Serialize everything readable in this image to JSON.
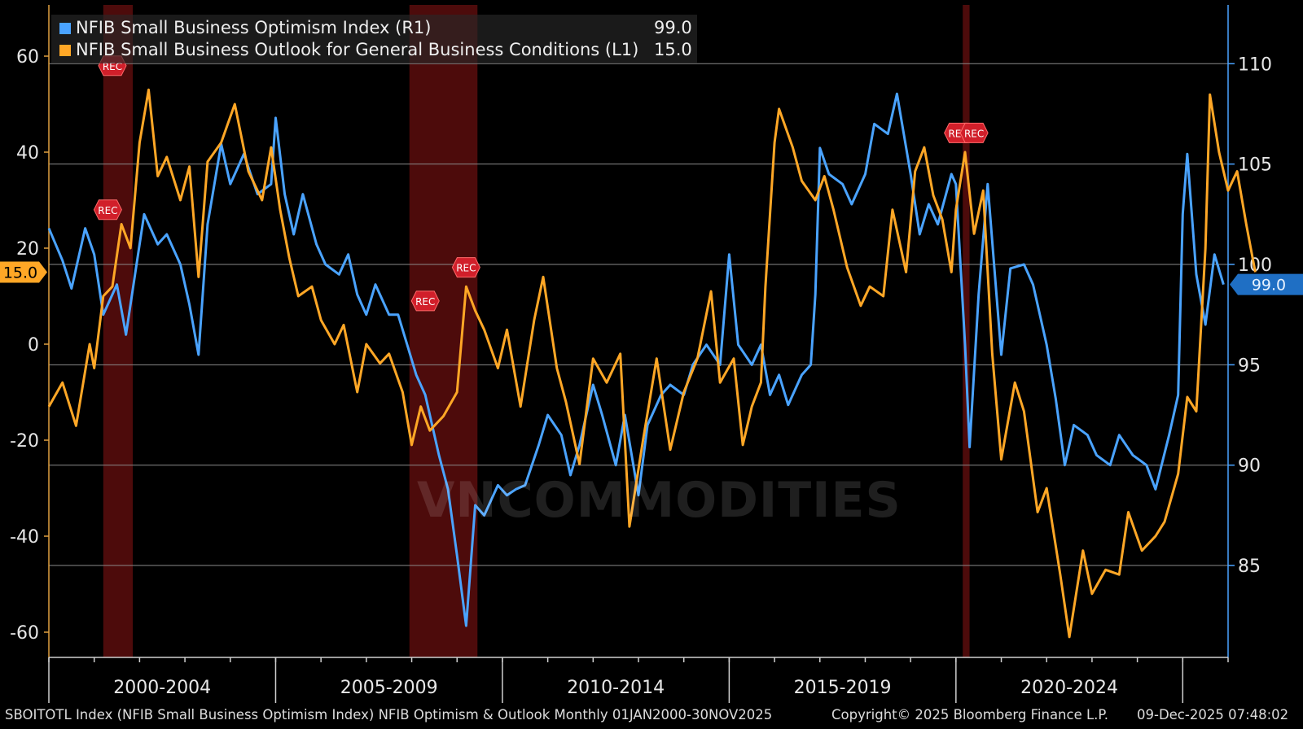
{
  "legend": {
    "series1": {
      "label": "NFIB Small Business Optimism Index  (R1)",
      "value": "99.0",
      "color": "#4aa3ff"
    },
    "series2": {
      "label": "NFIB Small Business Outlook for General Business Conditions (L1)",
      "value": "15.0",
      "color": "#ffa726"
    }
  },
  "footer": {
    "source": "SBOITOTL Index (NFIB Small Business Optimism Index) NFIB Optimism & Outlook Monthly 01JAN2000-30NOV2025",
    "copyright": "Copyright© 2025 Bloomberg Finance L.P.",
    "timestamp": "09-Dec-2025 07:48:02"
  },
  "watermark": "VNCOMMODITIES",
  "chart_data": {
    "type": "line",
    "title": "NFIB Optimism & Outlook Monthly",
    "x_range": [
      2000.0,
      2026.0
    ],
    "left_axis": {
      "range": [
        -66,
        70
      ],
      "ticks": [
        60,
        40,
        20,
        0,
        -20,
        -40,
        -60
      ],
      "last_value_label": "15.0"
    },
    "right_axis": {
      "range": [
        80,
        113
      ],
      "ticks": [
        110,
        105,
        100,
        95,
        90,
        85
      ],
      "last_value_label": "99.0"
    },
    "period_labels": [
      {
        "label": "2000-2004",
        "start": 2000,
        "end": 2005
      },
      {
        "label": "2005-2009",
        "start": 2005,
        "end": 2010
      },
      {
        "label": "2010-2014",
        "start": 2010,
        "end": 2015
      },
      {
        "label": "2015-2019",
        "start": 2015,
        "end": 2020
      },
      {
        "label": "2020-2024",
        "start": 2020,
        "end": 2025
      }
    ],
    "recessions": [
      [
        2001.2,
        2001.85
      ],
      [
        2007.95,
        2009.45
      ],
      [
        2020.15,
        2020.3
      ]
    ],
    "rec_markers": [
      {
        "label": "REC",
        "x": 2001.4,
        "y_left": 58
      },
      {
        "label": "REC",
        "x": 2001.3,
        "y_left": 28
      },
      {
        "label": "REC",
        "x": 2008.3,
        "y_left": 9
      },
      {
        "label": "REC",
        "x": 2009.2,
        "y_left": 16
      },
      {
        "label": "REC",
        "x": 2020.05,
        "y_left": 44
      },
      {
        "label": "REC",
        "x": 2020.4,
        "y_left": 44
      }
    ],
    "series": [
      {
        "name": "NFIB Small Business Optimism Index",
        "axis": "right",
        "color": "#4aa3ff",
        "points": [
          [
            2000.0,
            101.8
          ],
          [
            2000.3,
            100.2
          ],
          [
            2000.5,
            98.8
          ],
          [
            2000.8,
            101.8
          ],
          [
            2001.0,
            100.5
          ],
          [
            2001.2,
            97.5
          ],
          [
            2001.5,
            99.0
          ],
          [
            2001.7,
            96.5
          ],
          [
            2001.9,
            99.5
          ],
          [
            2002.1,
            102.5
          ],
          [
            2002.4,
            101.0
          ],
          [
            2002.6,
            101.5
          ],
          [
            2002.9,
            100.0
          ],
          [
            2003.1,
            98.0
          ],
          [
            2003.3,
            95.5
          ],
          [
            2003.5,
            102.0
          ],
          [
            2003.8,
            106.0
          ],
          [
            2004.0,
            104.0
          ],
          [
            2004.3,
            105.5
          ],
          [
            2004.6,
            103.5
          ],
          [
            2004.9,
            104.0
          ],
          [
            2005.0,
            107.3
          ],
          [
            2005.2,
            103.5
          ],
          [
            2005.4,
            101.5
          ],
          [
            2005.6,
            103.5
          ],
          [
            2005.9,
            101.0
          ],
          [
            2006.1,
            100.0
          ],
          [
            2006.4,
            99.5
          ],
          [
            2006.6,
            100.5
          ],
          [
            2006.8,
            98.5
          ],
          [
            2007.0,
            97.5
          ],
          [
            2007.2,
            99.0
          ],
          [
            2007.5,
            97.5
          ],
          [
            2007.7,
            97.5
          ],
          [
            2007.9,
            96.0
          ],
          [
            2008.1,
            94.5
          ],
          [
            2008.3,
            93.5
          ],
          [
            2008.6,
            90.5
          ],
          [
            2008.8,
            88.8
          ],
          [
            2009.0,
            85.5
          ],
          [
            2009.2,
            82.0
          ],
          [
            2009.4,
            88.0
          ],
          [
            2009.6,
            87.5
          ],
          [
            2009.9,
            89.0
          ],
          [
            2010.1,
            88.5
          ],
          [
            2010.3,
            88.8
          ],
          [
            2010.5,
            89.0
          ],
          [
            2010.8,
            91.0
          ],
          [
            2011.0,
            92.5
          ],
          [
            2011.3,
            91.5
          ],
          [
            2011.5,
            89.5
          ],
          [
            2011.7,
            91.0
          ],
          [
            2012.0,
            94.0
          ],
          [
            2012.2,
            92.5
          ],
          [
            2012.5,
            90.0
          ],
          [
            2012.7,
            92.5
          ],
          [
            2013.0,
            88.5
          ],
          [
            2013.2,
            92.0
          ],
          [
            2013.5,
            93.5
          ],
          [
            2013.7,
            94.0
          ],
          [
            2014.0,
            93.5
          ],
          [
            2014.2,
            95.0
          ],
          [
            2014.5,
            96.0
          ],
          [
            2014.8,
            95.0
          ],
          [
            2015.0,
            100.5
          ],
          [
            2015.2,
            96.0
          ],
          [
            2015.5,
            95.0
          ],
          [
            2015.7,
            96.0
          ],
          [
            2015.9,
            93.5
          ],
          [
            2016.1,
            94.5
          ],
          [
            2016.3,
            93.0
          ],
          [
            2016.6,
            94.5
          ],
          [
            2016.8,
            95.0
          ],
          [
            2016.9,
            98.5
          ],
          [
            2017.0,
            105.8
          ],
          [
            2017.2,
            104.5
          ],
          [
            2017.5,
            104.0
          ],
          [
            2017.7,
            103.0
          ],
          [
            2018.0,
            104.5
          ],
          [
            2018.2,
            107.0
          ],
          [
            2018.5,
            106.5
          ],
          [
            2018.7,
            108.5
          ],
          [
            2019.0,
            104.5
          ],
          [
            2019.2,
            101.5
          ],
          [
            2019.4,
            103.0
          ],
          [
            2019.6,
            102.0
          ],
          [
            2019.9,
            104.5
          ],
          [
            2020.0,
            104.0
          ],
          [
            2020.2,
            96.0
          ],
          [
            2020.3,
            90.9
          ],
          [
            2020.5,
            98.5
          ],
          [
            2020.7,
            104.0
          ],
          [
            2021.0,
            95.5
          ],
          [
            2021.2,
            99.8
          ],
          [
            2021.5,
            100.0
          ],
          [
            2021.7,
            99.0
          ],
          [
            2022.0,
            96.0
          ],
          [
            2022.2,
            93.3
          ],
          [
            2022.4,
            90.0
          ],
          [
            2022.6,
            92.0
          ],
          [
            2022.9,
            91.5
          ],
          [
            2023.1,
            90.5
          ],
          [
            2023.4,
            90.0
          ],
          [
            2023.6,
            91.5
          ],
          [
            2023.9,
            90.5
          ],
          [
            2024.2,
            90.0
          ],
          [
            2024.4,
            88.8
          ],
          [
            2024.7,
            91.5
          ],
          [
            2024.9,
            93.5
          ],
          [
            2025.0,
            102.5
          ],
          [
            2025.1,
            105.5
          ],
          [
            2025.3,
            99.5
          ],
          [
            2025.5,
            97.0
          ],
          [
            2025.7,
            100.5
          ],
          [
            2025.9,
            99.0
          ]
        ]
      },
      {
        "name": "NFIB Small Business Outlook for General Business Conditions",
        "axis": "left",
        "color": "#ffa726",
        "points": [
          [
            2000.0,
            -13
          ],
          [
            2000.3,
            -8
          ],
          [
            2000.6,
            -17
          ],
          [
            2000.9,
            0
          ],
          [
            2001.0,
            -5
          ],
          [
            2001.2,
            10
          ],
          [
            2001.4,
            12
          ],
          [
            2001.6,
            25
          ],
          [
            2001.8,
            20
          ],
          [
            2002.0,
            42
          ],
          [
            2002.2,
            53
          ],
          [
            2002.4,
            35
          ],
          [
            2002.6,
            39
          ],
          [
            2002.9,
            30
          ],
          [
            2003.1,
            37
          ],
          [
            2003.3,
            14
          ],
          [
            2003.5,
            38
          ],
          [
            2003.8,
            42
          ],
          [
            2004.1,
            50
          ],
          [
            2004.4,
            36
          ],
          [
            2004.7,
            30
          ],
          [
            2004.9,
            41
          ],
          [
            2005.1,
            28
          ],
          [
            2005.3,
            18
          ],
          [
            2005.5,
            10
          ],
          [
            2005.8,
            12
          ],
          [
            2006.0,
            5
          ],
          [
            2006.3,
            0
          ],
          [
            2006.5,
            4
          ],
          [
            2006.8,
            -10
          ],
          [
            2007.0,
            0
          ],
          [
            2007.3,
            -4
          ],
          [
            2007.5,
            -2
          ],
          [
            2007.8,
            -10
          ],
          [
            2008.0,
            -21
          ],
          [
            2008.2,
            -13
          ],
          [
            2008.4,
            -18
          ],
          [
            2008.7,
            -15
          ],
          [
            2009.0,
            -10
          ],
          [
            2009.2,
            12
          ],
          [
            2009.4,
            7
          ],
          [
            2009.6,
            3
          ],
          [
            2009.9,
            -5
          ],
          [
            2010.1,
            3
          ],
          [
            2010.4,
            -13
          ],
          [
            2010.7,
            5
          ],
          [
            2010.9,
            14
          ],
          [
            2011.2,
            -5
          ],
          [
            2011.4,
            -12
          ],
          [
            2011.7,
            -25
          ],
          [
            2012.0,
            -3
          ],
          [
            2012.3,
            -8
          ],
          [
            2012.6,
            -2
          ],
          [
            2012.8,
            -38
          ],
          [
            2013.1,
            -20
          ],
          [
            2013.4,
            -3
          ],
          [
            2013.7,
            -22
          ],
          [
            2014.0,
            -10
          ],
          [
            2014.3,
            -3
          ],
          [
            2014.6,
            11
          ],
          [
            2014.8,
            -8
          ],
          [
            2015.1,
            -3
          ],
          [
            2015.3,
            -21
          ],
          [
            2015.5,
            -13
          ],
          [
            2015.7,
            -8
          ],
          [
            2015.8,
            12
          ],
          [
            2016.0,
            42
          ],
          [
            2016.1,
            49
          ],
          [
            2016.4,
            41
          ],
          [
            2016.6,
            34
          ],
          [
            2016.9,
            30
          ],
          [
            2017.1,
            35
          ],
          [
            2017.3,
            28
          ],
          [
            2017.6,
            16
          ],
          [
            2017.9,
            8
          ],
          [
            2018.1,
            12
          ],
          [
            2018.4,
            10
          ],
          [
            2018.6,
            28
          ],
          [
            2018.9,
            15
          ],
          [
            2019.1,
            36
          ],
          [
            2019.3,
            41
          ],
          [
            2019.5,
            31
          ],
          [
            2019.7,
            26
          ],
          [
            2019.9,
            15
          ],
          [
            2020.0,
            28
          ],
          [
            2020.2,
            40
          ],
          [
            2020.4,
            23
          ],
          [
            2020.6,
            32
          ],
          [
            2020.8,
            -2
          ],
          [
            2021.0,
            -24
          ],
          [
            2021.3,
            -8
          ],
          [
            2021.5,
            -14
          ],
          [
            2021.8,
            -35
          ],
          [
            2022.0,
            -30
          ],
          [
            2022.3,
            -48
          ],
          [
            2022.5,
            -61
          ],
          [
            2022.8,
            -43
          ],
          [
            2023.0,
            -52
          ],
          [
            2023.3,
            -47
          ],
          [
            2023.6,
            -48
          ],
          [
            2023.8,
            -35
          ],
          [
            2024.1,
            -43
          ],
          [
            2024.4,
            -40
          ],
          [
            2024.6,
            -37
          ],
          [
            2024.9,
            -27
          ],
          [
            2025.1,
            -11
          ],
          [
            2025.3,
            -14
          ],
          [
            2025.5,
            20
          ],
          [
            2025.6,
            52
          ],
          [
            2025.8,
            40
          ],
          [
            2026.0,
            32
          ],
          [
            2026.2,
            36
          ],
          [
            2026.4,
            25
          ],
          [
            2026.6,
            15
          ]
        ]
      }
    ],
    "last_points": {
      "left": 15.0,
      "right": 99.0
    }
  }
}
